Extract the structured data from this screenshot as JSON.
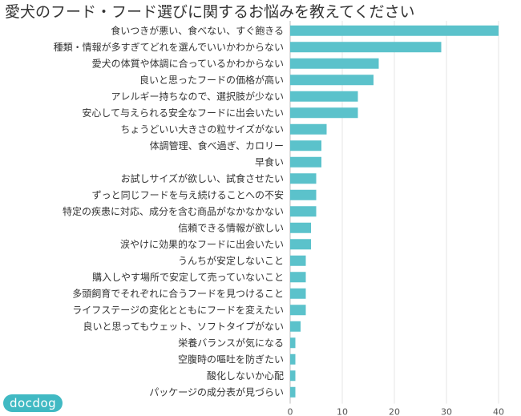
{
  "chart_data": {
    "type": "bar",
    "orientation": "horizontal",
    "title": "愛犬のフード・フード選びに関するお悩みを教えてください",
    "categories": [
      "食いつきが悪い、食べない、すぐ飽きる",
      "種類・情報が多すぎてどれを選んでいいかわからない",
      "愛犬の体質や体調に合っているかわからない",
      "良いと思ったフードの価格が高い",
      "アレルギー持ちなので、選択肢が少ない",
      "安心して与えられる安全なフードに出会いたい",
      "ちょうどいい大きさの粒サイズがない",
      "体調管理、食べ過ぎ、カロリー",
      "早食い",
      "お試しサイズが欲しい、試食させたい",
      "ずっと同じフードを与え続けることへの不安",
      "特定の疾患に対応、成分を含む商品がなかなかない",
      "信頼できる情報が欲しい",
      "涙やけに効果的なフードに出会いたい",
      "うんちが安定しないこと",
      "購入しやす場所で安定して売っていないこと",
      "多頭飼育でそれぞれに合うフードを見つけること",
      "ライフステージの変化とともにフードを変えたい",
      "良いと思ってもウェット、ソフトタイプがない",
      "栄養バランスが気になる",
      "空腹時の嘔吐を防ぎたい",
      "酸化しないか心配",
      "パッケージの成分表が見づらい"
    ],
    "values": [
      40,
      29,
      17,
      16,
      13,
      13,
      7,
      6,
      6,
      5,
      5,
      5,
      4,
      4,
      3,
      3,
      3,
      3,
      2,
      1,
      1,
      1,
      1
    ],
    "xlim": [
      0,
      40
    ],
    "xticks": [
      "0",
      "10",
      "20",
      "30",
      "40"
    ],
    "grid": true,
    "bar_color": "#5BC2CB"
  },
  "logo": {
    "text": "docdog",
    "color": "#40B9C3"
  }
}
